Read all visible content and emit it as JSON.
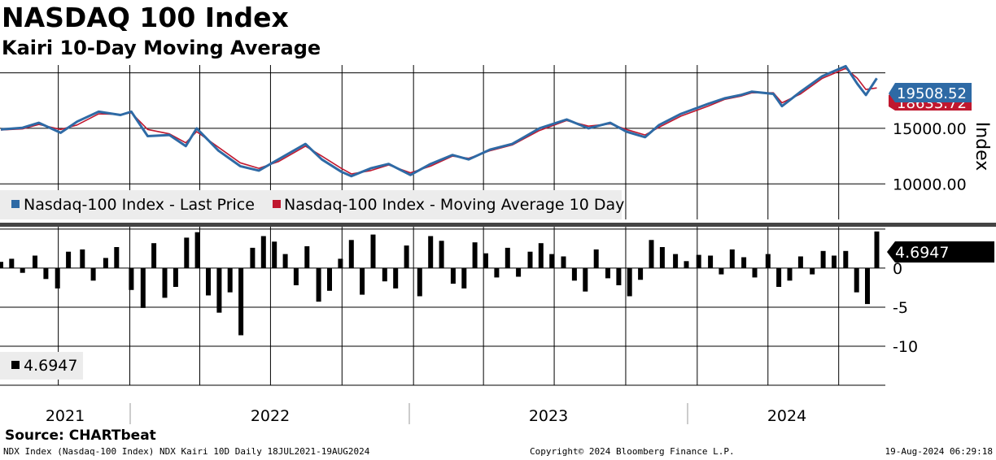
{
  "title": "NASDAQ 100 Index",
  "subtitle": "Kairi 10-Day Moving Average",
  "source": "Source: CHARTbeat",
  "footer": {
    "left": "NDX Index (Nasdaq-100 Index) NDX Kairi 10D  Daily 18JUL2021-19AUG2024",
    "center": "Copyright© 2024 Bloomberg Finance L.P.",
    "right": "19-Aug-2024 06:29:18"
  },
  "colors": {
    "price": "#2e6aa5",
    "moving_average": "#c0182f",
    "kairi": "#000000"
  },
  "chart_data": [
    {
      "type": "line",
      "ylabel": "Index",
      "yticks": [
        10000,
        15000
      ],
      "ytick_labels": [
        "10000.00",
        "15000.00"
      ],
      "ylim": [
        6800,
        20700
      ],
      "grid": true,
      "legend": {
        "position": "bottom-left",
        "entries": [
          "Nasdaq-100 Index - Last Price",
          "Nasdaq-100 Index - Moving Average 10 Day"
        ]
      },
      "last_value_labels": [
        "19508.52",
        "18633.72"
      ],
      "series": [
        {
          "name": "Nasdaq-100 Index - Last Price",
          "x": [
            "2021-07-19",
            "2021-08-16",
            "2021-09-06",
            "2021-10-04",
            "2021-10-25",
            "2021-11-22",
            "2021-12-20",
            "2022-01-03",
            "2022-01-24",
            "2022-02-21",
            "2022-03-14",
            "2022-03-28",
            "2022-04-25",
            "2022-05-23",
            "2022-06-16",
            "2022-07-11",
            "2022-08-15",
            "2022-09-05",
            "2022-09-30",
            "2022-10-13",
            "2022-11-07",
            "2022-11-30",
            "2022-12-28",
            "2023-01-23",
            "2023-02-20",
            "2023-03-13",
            "2023-04-10",
            "2023-05-08",
            "2023-06-12",
            "2023-07-17",
            "2023-08-14",
            "2023-09-11",
            "2023-10-02",
            "2023-10-26",
            "2023-11-13",
            "2023-12-11",
            "2024-01-15",
            "2024-02-05",
            "2024-02-26",
            "2024-03-11",
            "2024-04-08",
            "2024-04-19",
            "2024-05-13",
            "2024-06-10",
            "2024-07-10",
            "2024-07-25",
            "2024-08-05",
            "2024-08-19"
          ],
          "values": [
            14900,
            15050,
            15500,
            14600,
            15600,
            16500,
            16200,
            16500,
            14300,
            14400,
            13400,
            15000,
            13000,
            11600,
            11200,
            12200,
            13600,
            12200,
            11100,
            10700,
            11400,
            11800,
            10800,
            11800,
            12600,
            12200,
            13100,
            13600,
            15000,
            15800,
            15000,
            15500,
            14700,
            14200,
            15300,
            16300,
            17200,
            17700,
            18000,
            18300,
            18100,
            17000,
            18300,
            19700,
            20600,
            19000,
            18000,
            19508.52
          ]
        },
        {
          "name": "Nasdaq-100 Index - Moving Average 10 Day",
          "x": [
            "2021-07-19",
            "2021-08-16",
            "2021-09-06",
            "2021-10-04",
            "2021-10-25",
            "2021-11-22",
            "2021-12-20",
            "2022-01-03",
            "2022-01-24",
            "2022-02-21",
            "2022-03-14",
            "2022-03-28",
            "2022-04-25",
            "2022-05-23",
            "2022-06-16",
            "2022-07-11",
            "2022-08-15",
            "2022-09-05",
            "2022-09-30",
            "2022-10-13",
            "2022-11-07",
            "2022-11-30",
            "2022-12-28",
            "2023-01-23",
            "2023-02-20",
            "2023-03-13",
            "2023-04-10",
            "2023-05-08",
            "2023-06-12",
            "2023-07-17",
            "2023-08-14",
            "2023-09-11",
            "2023-10-02",
            "2023-10-26",
            "2023-11-13",
            "2023-12-11",
            "2024-01-15",
            "2024-02-05",
            "2024-02-26",
            "2024-03-11",
            "2024-04-08",
            "2024-04-19",
            "2024-05-13",
            "2024-06-10",
            "2024-07-10",
            "2024-07-25",
            "2024-08-05",
            "2024-08-19"
          ],
          "values": [
            14850,
            14950,
            15350,
            14900,
            15300,
            16300,
            16250,
            16400,
            14900,
            14500,
            13700,
            14700,
            13300,
            11900,
            11400,
            12000,
            13400,
            12500,
            11400,
            10900,
            11200,
            11700,
            11000,
            11600,
            12500,
            12300,
            13000,
            13500,
            14800,
            15700,
            15200,
            15400,
            14900,
            14400,
            15100,
            16100,
            17000,
            17600,
            17900,
            18200,
            18200,
            17300,
            18100,
            19500,
            20400,
            19500,
            18500,
            18633.72
          ]
        }
      ]
    },
    {
      "type": "bar",
      "yticks": [
        0,
        -5,
        -10
      ],
      "ytick_labels": [
        "0",
        "-5",
        "-10"
      ],
      "ylim": [
        -15,
        5.3
      ],
      "grid": true,
      "legend": {
        "position": "bottom-left",
        "entries": [
          "4.6947"
        ]
      },
      "last_value_labels": [
        "4.6947"
      ],
      "series": [
        {
          "name": "4.6947",
          "x": [
            "2021-07-19",
            "2021-08-02",
            "2021-08-16",
            "2021-09-01",
            "2021-09-15",
            "2021-09-30",
            "2021-10-14",
            "2021-11-01",
            "2021-11-15",
            "2021-12-01",
            "2021-12-15",
            "2022-01-03",
            "2022-01-18",
            "2022-02-01",
            "2022-02-15",
            "2022-03-01",
            "2022-03-15",
            "2022-03-29",
            "2022-04-12",
            "2022-04-26",
            "2022-05-10",
            "2022-05-24",
            "2022-06-08",
            "2022-06-22",
            "2022-07-06",
            "2022-07-20",
            "2022-08-03",
            "2022-08-17",
            "2022-09-01",
            "2022-09-15",
            "2022-09-29",
            "2022-10-13",
            "2022-10-27",
            "2022-11-10",
            "2022-11-25",
            "2022-12-09",
            "2022-12-23",
            "2023-01-09",
            "2023-01-23",
            "2023-02-06",
            "2023-02-21",
            "2023-03-07",
            "2023-03-21",
            "2023-04-04",
            "2023-04-18",
            "2023-05-02",
            "2023-05-16",
            "2023-05-31",
            "2023-06-14",
            "2023-06-28",
            "2023-07-13",
            "2023-07-27",
            "2023-08-10",
            "2023-08-24",
            "2023-09-08",
            "2023-09-22",
            "2023-10-06",
            "2023-10-20",
            "2023-11-03",
            "2023-11-17",
            "2023-12-04",
            "2023-12-18",
            "2024-01-03",
            "2024-01-18",
            "2024-02-01",
            "2024-02-15",
            "2024-03-01",
            "2024-03-15",
            "2024-04-01",
            "2024-04-15",
            "2024-04-29",
            "2024-05-13",
            "2024-05-28",
            "2024-06-11",
            "2024-06-25",
            "2024-07-10",
            "2024-07-24",
            "2024-08-07",
            "2024-08-19"
          ],
          "values": [
            0.8,
            1.2,
            -0.6,
            1.6,
            -1.4,
            -2.6,
            2.1,
            2.4,
            -1.6,
            1.3,
            2.7,
            -2.8,
            -5.1,
            3.2,
            -3.8,
            -2.4,
            3.9,
            4.6,
            -3.5,
            -5.7,
            -3.1,
            -8.6,
            2.6,
            4.1,
            3.4,
            1.8,
            -2.2,
            2.8,
            -4.3,
            -2.9,
            1.2,
            3.6,
            -3.4,
            4.3,
            -1.7,
            -2.6,
            2.9,
            -3.6,
            4.1,
            3.5,
            -2.0,
            -2.6,
            3.3,
            1.9,
            -1.2,
            2.6,
            -1.1,
            2.1,
            3.2,
            1.8,
            1.5,
            -1.6,
            -3.0,
            2.4,
            -1.3,
            -2.2,
            -3.6,
            -1.5,
            3.6,
            2.7,
            1.8,
            0.9,
            1.7,
            1.6,
            -0.8,
            2.4,
            1.4,
            -1.2,
            1.8,
            -2.4,
            -1.6,
            1.5,
            -0.8,
            2.2,
            1.6,
            2.2,
            -3.1,
            -4.6,
            4.6947
          ]
        }
      ]
    }
  ]
}
